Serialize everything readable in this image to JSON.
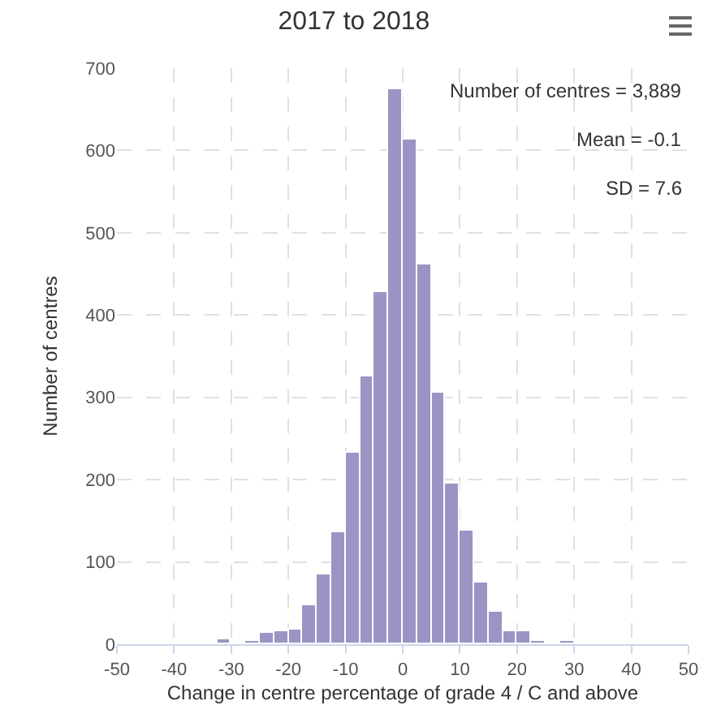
{
  "chart_data": {
    "type": "histogram",
    "title": "2017 to 2018",
    "xlabel": "Change in centre percentage of grade 4 / C and above",
    "ylabel": "Number of centres",
    "bins": [
      -32.5,
      -30,
      -27.5,
      -25,
      -22.5,
      -20,
      -17.5,
      -15,
      -12.5,
      -10,
      -7.5,
      -5,
      -2.5,
      0,
      2.5,
      5,
      7.5,
      10,
      12.5,
      15,
      17.5,
      20,
      22.5,
      25,
      27.5,
      30,
      32.5,
      35
    ],
    "values": [
      5,
      0,
      3,
      14,
      16,
      18,
      47,
      84,
      137,
      233,
      326,
      428,
      674,
      614,
      462,
      305,
      195,
      139,
      74,
      39,
      16,
      16,
      3,
      2,
      3,
      0,
      2
    ],
    "color": "#9b94c4",
    "xlim": [
      -50,
      50
    ],
    "xticks": [
      -50,
      -40,
      -30,
      -20,
      -10,
      0,
      10,
      20,
      30,
      40,
      50
    ],
    "ylim": [
      0,
      700
    ],
    "yticks": [
      0,
      100,
      200,
      300,
      400,
      500,
      600,
      700
    ],
    "grid": true,
    "annotations": [
      "Number of centres = 3,889",
      "Mean = -0.1",
      "SD = 7.6"
    ]
  }
}
